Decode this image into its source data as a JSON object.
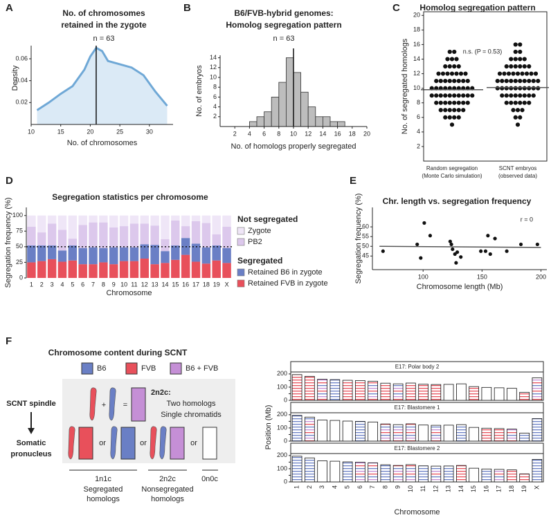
{
  "panel_labels": [
    "A",
    "B",
    "C",
    "D",
    "E",
    "F"
  ],
  "chart_data": [
    {
      "type": "area",
      "title": [
        "No. of chromosomes",
        "retained in the zygote"
      ],
      "subtitle": "n = 63",
      "x": [
        11,
        13,
        15,
        17,
        19,
        20,
        21,
        22,
        23,
        25,
        27,
        29,
        31,
        33
      ],
      "values": [
        0.013,
        0.02,
        0.028,
        0.035,
        0.05,
        0.062,
        0.07,
        0.067,
        0.058,
        0.055,
        0.052,
        0.045,
        0.03,
        0.017
      ],
      "color": "#6fa8d6",
      "fill_color": "#dbeaf6",
      "vline": 21,
      "xlim": [
        10,
        34
      ],
      "xticks": [
        10,
        15,
        20,
        25,
        30
      ],
      "ylim": [
        0,
        0.072
      ],
      "yticks": [
        0.02,
        0.04,
        0.06
      ],
      "x_label": "No. of chromosomes",
      "y_label": "Density"
    },
    {
      "type": "histogram",
      "title": [
        "B6/FVB-hybrid genomes:",
        "Homolog segregation pattern"
      ],
      "subtitle": "n = 63",
      "bins": [
        4,
        5,
        6,
        7,
        8,
        9,
        10,
        11,
        12,
        13,
        14,
        15,
        16,
        17
      ],
      "values": [
        1,
        2,
        3,
        6,
        9,
        14,
        11,
        7,
        4,
        2,
        2,
        1,
        1
      ],
      "color": "#bdbdbd",
      "vline": 10,
      "xlim": [
        0,
        20
      ],
      "xticks": [
        2,
        4,
        6,
        8,
        10,
        12,
        14,
        16,
        18,
        20
      ],
      "ylim": [
        0,
        14.5
      ],
      "yticks": [
        2,
        4,
        6,
        8,
        10,
        12,
        14
      ],
      "x_label": "No. of homologs properly segregated",
      "y_label": "No. of embryos"
    },
    {
      "type": "dotplot",
      "title": "Homolog segregation pattern",
      "annotation": "n.s. (P = 0.53)",
      "categories": [
        [
          "Random segregation",
          "(Monte Carlo simulation)"
        ],
        [
          "SCNT embryos",
          "(observed data)"
        ]
      ],
      "values": [
        [
          5,
          6,
          6,
          6,
          6,
          7,
          7,
          7,
          7,
          7,
          7,
          8,
          8,
          8,
          8,
          8,
          8,
          8,
          8,
          9,
          9,
          9,
          9,
          9,
          9,
          9,
          9,
          9,
          9,
          10,
          10,
          10,
          10,
          10,
          10,
          10,
          10,
          10,
          10,
          11,
          11,
          11,
          11,
          11,
          11,
          11,
          11,
          12,
          12,
          12,
          12,
          12,
          12,
          12,
          13,
          13,
          13,
          13,
          14,
          14,
          14,
          15,
          15
        ],
        [
          5,
          6,
          6,
          7,
          7,
          7,
          8,
          8,
          8,
          8,
          8,
          8,
          9,
          9,
          9,
          9,
          9,
          9,
          9,
          9,
          10,
          10,
          10,
          10,
          10,
          10,
          10,
          10,
          10,
          10,
          11,
          11,
          11,
          11,
          11,
          11,
          11,
          11,
          11,
          11,
          12,
          12,
          12,
          12,
          12,
          12,
          12,
          12,
          12,
          13,
          13,
          13,
          13,
          13,
          13,
          14,
          14,
          14,
          14,
          15,
          15,
          16,
          16
        ]
      ],
      "medians": [
        9.8,
        10.1
      ],
      "color": "#111111",
      "ylim": [
        0,
        20.5
      ],
      "yticks": [
        2,
        4,
        6,
        8,
        10,
        12,
        14,
        16,
        18,
        20
      ],
      "y_label": "No. of segregated homologs"
    },
    {
      "type": "stacked_bar",
      "title": "Segregation statistics per chromosome",
      "categories": [
        "1",
        "2",
        "3",
        "4",
        "5",
        "6",
        "7",
        "8",
        "9",
        "10",
        "11",
        "12",
        "13",
        "14",
        "15",
        "16",
        "17",
        "18",
        "19",
        "X"
      ],
      "series_groups": [
        {
          "name": "Not segregated",
          "series": [
            {
              "name": "Zygote",
              "color": "#efe6f7",
              "values": [
                18,
                27,
                13,
                23,
                37,
                15,
                11,
                11,
                19,
                17,
                13,
                13,
                16,
                38,
                8,
                17,
                9,
                12,
                30,
                18
              ]
            },
            {
              "name": "PB2",
              "color": "#dcc8ec",
              "values": [
                30,
                21,
                35,
                33,
                11,
                37,
                40,
                41,
                32,
                34,
                38,
                33,
                31,
                19,
                40,
                19,
                36,
                39,
                18,
                34
              ]
            }
          ]
        },
        {
          "name": "Segregated",
          "series": [
            {
              "name": "Retained B6 in zygote",
              "color": "#6a7fc5",
              "values": [
                27,
                25,
                22,
                18,
                24,
                26,
                27,
                23,
                27,
                22,
                22,
                23,
                31,
                19,
                23,
                27,
                29,
                26,
                24,
                24
              ]
            },
            {
              "name": "Retained FVB in zygote",
              "color": "#e8505b",
              "values": [
                25,
                27,
                30,
                26,
                28,
                22,
                22,
                25,
                22,
                27,
                27,
                31,
                22,
                24,
                29,
                37,
                26,
                23,
                28,
                24
              ]
            }
          ]
        }
      ],
      "hline": 50,
      "ylim": [
        0,
        113
      ],
      "yticks": [
        0,
        25,
        50,
        75,
        100
      ],
      "x_label": "Chromosome",
      "y_label": "Segregation frequency (%)"
    },
    {
      "type": "scatter",
      "title": "Chr. length vs. segregation frequency",
      "annotation": "r = 0",
      "x": [
        66,
        95,
        98,
        101,
        106,
        123,
        124,
        125,
        127,
        128,
        129,
        132,
        149,
        153,
        155,
        157,
        161,
        171,
        183,
        197
      ],
      "values": [
        47.5,
        51,
        44,
        62,
        55.5,
        52.5,
        51,
        48.5,
        46,
        41.5,
        47,
        44.5,
        47.5,
        47.5,
        55.5,
        46,
        54,
        47.5,
        51,
        51
      ],
      "trend_line": {
        "x": [
          63,
          200
        ],
        "y": [
          50,
          49.4
        ]
      },
      "color": "#111111",
      "xlim": [
        57,
        205
      ],
      "xticks": [
        100,
        150,
        200
      ],
      "ylim": [
        38,
        70
      ],
      "yticks": [
        45,
        50,
        55,
        60
      ],
      "x_label": "Chromosome length (Mb)",
      "y_label": "Segregation frequency (%)"
    },
    {
      "type": "ideogram",
      "categories": [
        "1",
        "2",
        "3",
        "4",
        "5",
        "6",
        "7",
        "8",
        "9",
        "10",
        "11",
        "12",
        "13",
        "14",
        "15",
        "16",
        "17",
        "18",
        "19",
        "X"
      ],
      "values": [
        195,
        182,
        160,
        157,
        152,
        150,
        145,
        130,
        125,
        131,
        122,
        120,
        121,
        125,
        104,
        98,
        95,
        91,
        61,
        171
      ],
      "panels": [
        {
          "title": "E17: Polar body 2",
          "fills": [
            "red",
            "red",
            "mix",
            "blue",
            "red",
            "red",
            "mix",
            "red",
            "mix",
            "red",
            "red",
            "red",
            "none",
            "none",
            "red",
            "none",
            "none",
            "none",
            "red",
            "mix"
          ]
        },
        {
          "title": "E17: Blastomere 1",
          "fills": [
            "blue",
            "mix",
            "none",
            "none",
            "none",
            "blue",
            "none",
            "mix",
            "mix",
            "mix",
            "none",
            "mix",
            "none",
            "blue",
            "none",
            "red",
            "red",
            "mix",
            "blue",
            "blue"
          ]
        },
        {
          "title": "E17: Blastomere 2",
          "fills": [
            "blue",
            "blue",
            "none",
            "none",
            "blue",
            "mix",
            "mix",
            "blue",
            "mix",
            "mix",
            "blue",
            "mix",
            "blue",
            "red",
            "none",
            "blue",
            "mix",
            "red",
            "red",
            "blue"
          ]
        }
      ],
      "ylim": [
        0,
        215
      ],
      "yticks": [
        0,
        50,
        100,
        150,
        200
      ],
      "x_label": "Chromosome",
      "y_label": "Position (Mb)"
    }
  ],
  "diagram": {
    "title": "Chromosome content during SCNT",
    "legend": [
      "B6",
      "FVB",
      "B6 + FVB"
    ],
    "spindle": "SCNT spindle",
    "plus": "+",
    "equals": "=",
    "state": {
      "label": "2n2c:",
      "lines": [
        "Two homologs",
        "Single chromatids"
      ]
    },
    "pronucleus": [
      "Somatic",
      "pronucleus"
    ],
    "or": [
      "or",
      "or",
      "or",
      "or"
    ],
    "outcomes": [
      {
        "label": "1n1c",
        "lines": [
          "Segregated",
          "homologs"
        ]
      },
      {
        "label": "2n2c",
        "lines": [
          "Nonsegregated",
          "homologs"
        ]
      },
      {
        "label": "0n0c"
      }
    ]
  }
}
